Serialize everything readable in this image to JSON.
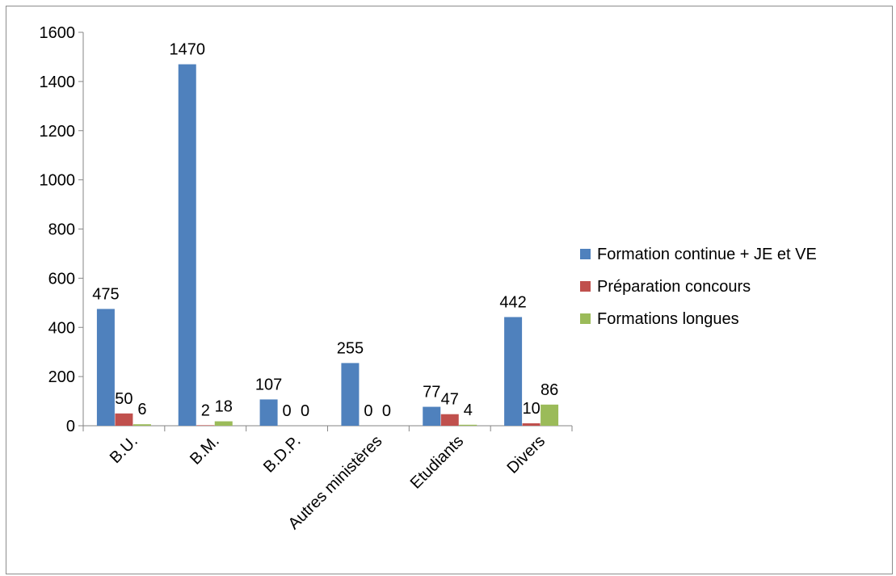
{
  "chart_data": {
    "type": "bar",
    "title": "",
    "xlabel": "",
    "ylabel": "",
    "categories": [
      "B.U.",
      "B.M.",
      "B.D.P.",
      "Autres ministères",
      "Etudiants",
      "Divers"
    ],
    "series": [
      {
        "name": "Formation continue + JE et VE",
        "color": "#4f81bd",
        "values": [
          475,
          1470,
          107,
          255,
          77,
          442
        ]
      },
      {
        "name": "Préparation concours",
        "color": "#c0504d",
        "values": [
          50,
          2,
          0,
          0,
          47,
          10
        ]
      },
      {
        "name": "Formations longues",
        "color": "#9bbb59",
        "values": [
          6,
          18,
          0,
          0,
          4,
          86
        ]
      }
    ],
    "data_labels": [
      [
        "475",
        "1470",
        "107",
        "255",
        "77",
        "442"
      ],
      [
        "50",
        "2",
        "0",
        "0",
        "47",
        "10"
      ],
      [
        "6",
        "18",
        "0",
        "0",
        "4",
        "86"
      ]
    ],
    "yticks": [
      0,
      200,
      400,
      600,
      800,
      1000,
      1200,
      1400,
      1600
    ],
    "ylim": [
      0,
      1600
    ],
    "grid": false,
    "legend_position": "right"
  }
}
